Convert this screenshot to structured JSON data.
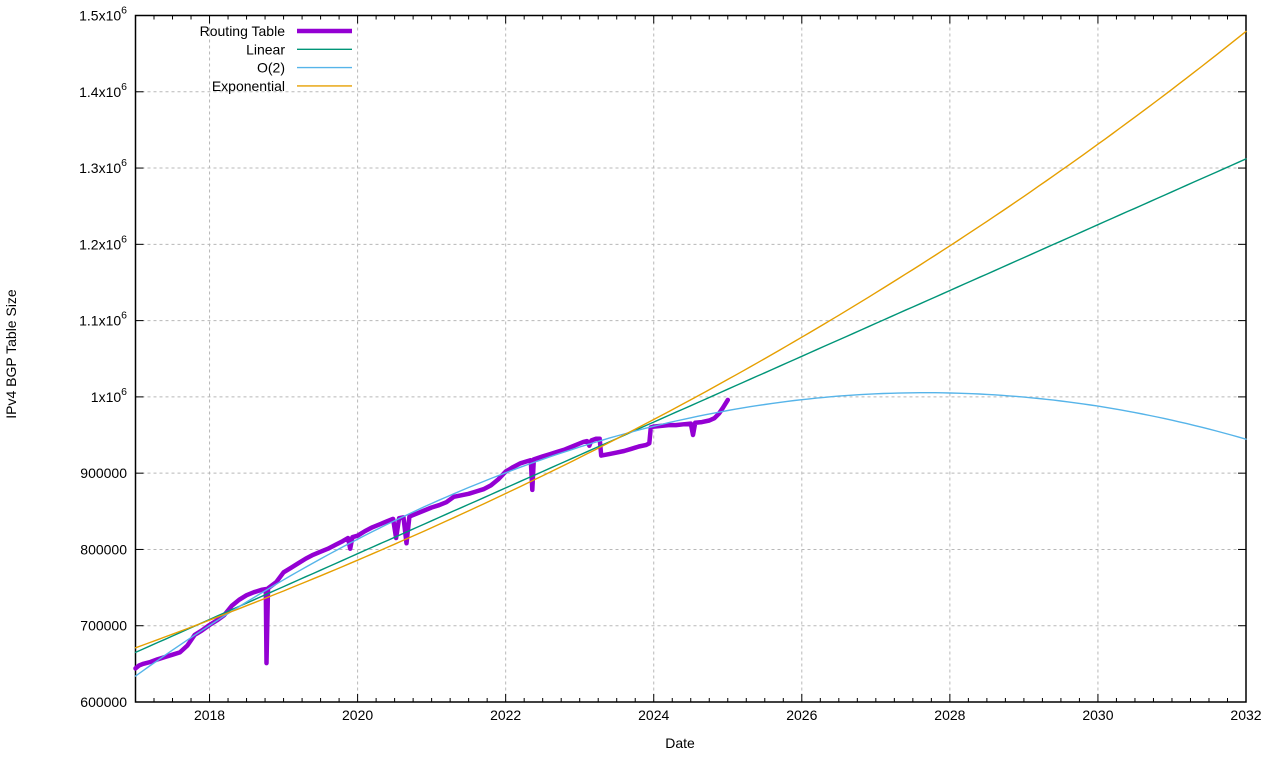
{
  "chart_data": {
    "type": "line",
    "title": "",
    "xlabel": "Date",
    "ylabel": "IPv4 BGP Table Size",
    "x_range": [
      2017,
      2032
    ],
    "y_range": [
      600000,
      1500000
    ],
    "x_minor_step": 0.25,
    "grid": {
      "show": true,
      "color": "#b8b8b8",
      "dash": "3,3"
    },
    "x_ticks": [
      {
        "v": 2018,
        "label": "2018"
      },
      {
        "v": 2020,
        "label": "2020"
      },
      {
        "v": 2022,
        "label": "2022"
      },
      {
        "v": 2024,
        "label": "2024"
      },
      {
        "v": 2026,
        "label": "2026"
      },
      {
        "v": 2028,
        "label": "2028"
      },
      {
        "v": 2030,
        "label": "2030"
      },
      {
        "v": 2032,
        "label": "2032"
      }
    ],
    "y_ticks": [
      {
        "v": 600000,
        "label": "600000"
      },
      {
        "v": 700000,
        "label": "700000"
      },
      {
        "v": 800000,
        "label": "800000"
      },
      {
        "v": 900000,
        "label": "900000"
      },
      {
        "v": 1000000,
        "label": "1x10",
        "exp": "6"
      },
      {
        "v": 1100000,
        "label": "1.1x10",
        "exp": "6"
      },
      {
        "v": 1200000,
        "label": "1.2x10",
        "exp": "6"
      },
      {
        "v": 1300000,
        "label": "1.3x10",
        "exp": "6"
      },
      {
        "v": 1400000,
        "label": "1.4x10",
        "exp": "6"
      },
      {
        "v": 1500000,
        "label": "1.5x10",
        "exp": "6"
      }
    ],
    "legend": {
      "position": "top-left",
      "entries": [
        {
          "label": "Routing Table",
          "series": "routing_table",
          "line_width": 4.5
        },
        {
          "label": "Linear",
          "series": "linear",
          "line_width": 1.4
        },
        {
          "label": "O(2)",
          "series": "o2",
          "line_width": 1.4
        },
        {
          "label": "Exponential",
          "series": "exponential",
          "line_width": 1.4
        }
      ]
    },
    "series": [
      {
        "id": "routing_table",
        "name": "Routing Table",
        "type": "data",
        "color": "#9400d3",
        "width": 4.5,
        "points": [
          [
            2017.0,
            644000
          ],
          [
            2017.05,
            648000
          ],
          [
            2017.1,
            650000
          ],
          [
            2017.2,
            652500
          ],
          [
            2017.3,
            656000
          ],
          [
            2017.4,
            659000
          ],
          [
            2017.5,
            662000
          ],
          [
            2017.6,
            665000
          ],
          [
            2017.7,
            674000
          ],
          [
            2017.8,
            688000
          ],
          [
            2017.9,
            694000
          ],
          [
            2018.0,
            701000
          ],
          [
            2018.1,
            707000
          ],
          [
            2018.2,
            714000
          ],
          [
            2018.3,
            726000
          ],
          [
            2018.4,
            734000
          ],
          [
            2018.5,
            740000
          ],
          [
            2018.6,
            744000
          ],
          [
            2018.7,
            747000
          ],
          [
            2018.76,
            748000
          ],
          [
            2018.77,
            651000
          ],
          [
            2018.79,
            749000
          ],
          [
            2018.9,
            757000
          ],
          [
            2019.0,
            770000
          ],
          [
            2019.1,
            776000
          ],
          [
            2019.2,
            782000
          ],
          [
            2019.3,
            788000
          ],
          [
            2019.4,
            793000
          ],
          [
            2019.5,
            797000
          ],
          [
            2019.6,
            801000
          ],
          [
            2019.7,
            806000
          ],
          [
            2019.8,
            811000
          ],
          [
            2019.87,
            815000
          ],
          [
            2019.9,
            801000
          ],
          [
            2019.93,
            816000
          ],
          [
            2020.0,
            818000
          ],
          [
            2020.1,
            824000
          ],
          [
            2020.2,
            829000
          ],
          [
            2020.3,
            833000
          ],
          [
            2020.4,
            837000
          ],
          [
            2020.48,
            840000
          ],
          [
            2020.52,
            815000
          ],
          [
            2020.56,
            841000
          ],
          [
            2020.62,
            842000
          ],
          [
            2020.66,
            808000
          ],
          [
            2020.7,
            843000
          ],
          [
            2020.8,
            847000
          ],
          [
            2020.9,
            851000
          ],
          [
            2021.0,
            855000
          ],
          [
            2021.1,
            858000
          ],
          [
            2021.2,
            862000
          ],
          [
            2021.3,
            869000
          ],
          [
            2021.4,
            871000
          ],
          [
            2021.5,
            873000
          ],
          [
            2021.6,
            876000
          ],
          [
            2021.7,
            879000
          ],
          [
            2021.8,
            884000
          ],
          [
            2021.9,
            892000
          ],
          [
            2022.0,
            902000
          ],
          [
            2022.1,
            908000
          ],
          [
            2022.2,
            913000
          ],
          [
            2022.3,
            916000
          ],
          [
            2022.34,
            917000
          ],
          [
            2022.36,
            878000
          ],
          [
            2022.38,
            918000
          ],
          [
            2022.5,
            922000
          ],
          [
            2022.6,
            925000
          ],
          [
            2022.7,
            928000
          ],
          [
            2022.8,
            931000
          ],
          [
            2022.9,
            935000
          ],
          [
            2023.0,
            939000
          ],
          [
            2023.05,
            941000
          ],
          [
            2023.1,
            942000
          ],
          [
            2023.13,
            936000
          ],
          [
            2023.16,
            943000
          ],
          [
            2023.22,
            945000
          ],
          [
            2023.27,
            945000
          ],
          [
            2023.29,
            923000
          ],
          [
            2023.4,
            925000
          ],
          [
            2023.5,
            927000
          ],
          [
            2023.6,
            929000
          ],
          [
            2023.7,
            932000
          ],
          [
            2023.8,
            935000
          ],
          [
            2023.9,
            937000
          ],
          [
            2023.94,
            939000
          ],
          [
            2023.96,
            960000
          ],
          [
            2024.0,
            961000
          ],
          [
            2024.1,
            962000
          ],
          [
            2024.2,
            963000
          ],
          [
            2024.3,
            963000
          ],
          [
            2024.4,
            964000
          ],
          [
            2024.5,
            965000
          ],
          [
            2024.53,
            950000
          ],
          [
            2024.56,
            966000
          ],
          [
            2024.65,
            967000
          ],
          [
            2024.75,
            969000
          ],
          [
            2024.82,
            972000
          ],
          [
            2024.88,
            978000
          ],
          [
            2024.93,
            985000
          ],
          [
            2025.0,
            996000
          ]
        ]
      },
      {
        "id": "linear",
        "name": "Linear",
        "type": "fit_linear",
        "color": "#009578",
        "width": 1.4,
        "y_at_2017": 665000,
        "y_at_2032": 1312000
      },
      {
        "id": "o2",
        "name": "O(2)",
        "type": "fit_quadratic",
        "color": "#56b4e9",
        "width": 1.4,
        "t0": 2017,
        "c0": 634000,
        "c1": 69600,
        "c2": -3260,
        "peak_year": 2027.7,
        "peak_value": 1005000,
        "y_at_2032": 945000
      },
      {
        "id": "exponential",
        "name": "Exponential",
        "type": "fit_exponential",
        "color": "#e69f00",
        "width": 1.4,
        "t0": 2017,
        "v0": 671000,
        "rate_per_year": 0.0527,
        "y_at_2032": 1479000
      }
    ]
  }
}
